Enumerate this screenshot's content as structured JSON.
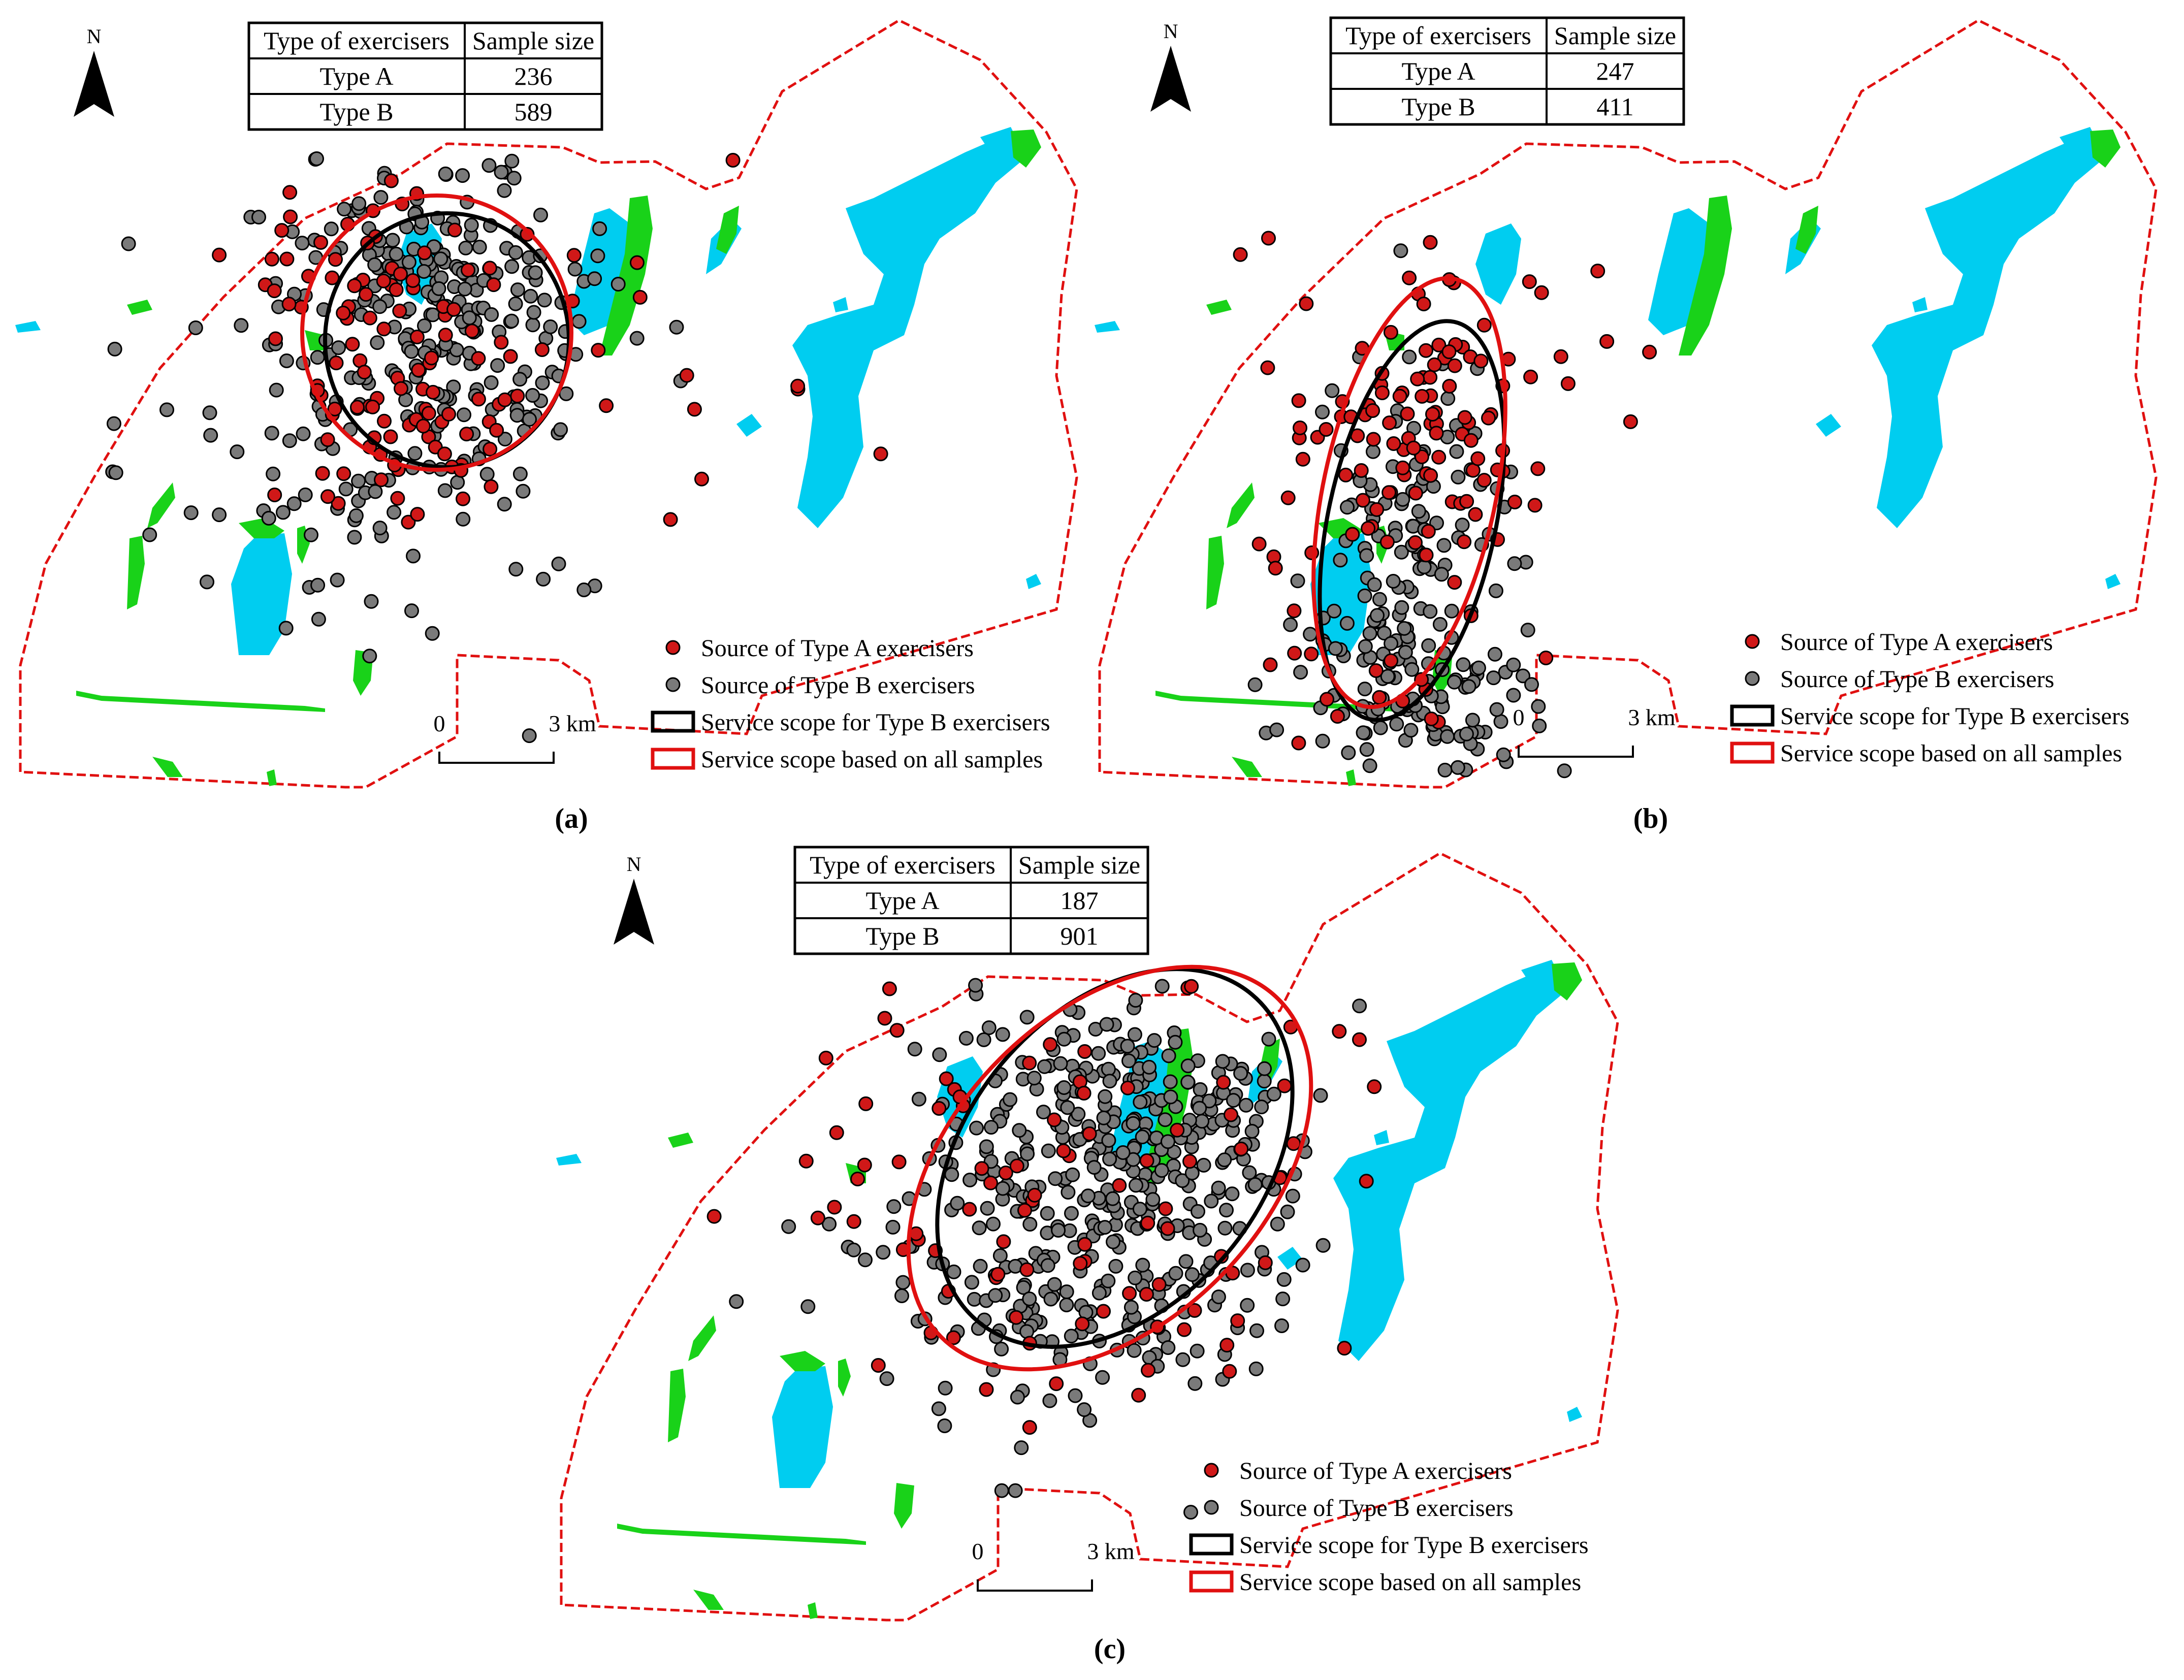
{
  "figure": {
    "colors": {
      "boundary": "#e01010",
      "water": "#00cdf0",
      "green": "#19d219",
      "type_a_point": "#d01818",
      "type_b_point": "#7a7a7a",
      "point_stroke": "#000000",
      "ellipse_type_b": "#000000",
      "ellipse_all": "#e01010"
    },
    "icons": {
      "north_arrow": "north-arrow-icon",
      "point_a": "red-circle-marker-icon",
      "point_b": "gray-circle-marker-icon",
      "ellipse_b": "black-rectangle-swatch-icon",
      "ellipse_all": "red-rectangle-swatch-icon"
    },
    "panels": [
      {
        "label": "(a)",
        "north": "N",
        "table": {
          "header": [
            "Type of exercisers",
            "Sample size"
          ],
          "rows": [
            [
              "Type A",
              "236"
            ],
            [
              "Type B",
              "589"
            ]
          ]
        },
        "legend": [
          "Source of Type A exercisers",
          "Source of Type B exercisers",
          "Service scope for Type B exercisers",
          "Service scope based on all samples"
        ],
        "scale": {
          "start": "0",
          "end": "3 km"
        },
        "sample_counts": {
          "type_a": 236,
          "type_b": 589
        }
      },
      {
        "label": "(b)",
        "north": "N",
        "table": {
          "header": [
            "Type of exercisers",
            "Sample size"
          ],
          "rows": [
            [
              "Type A",
              "247"
            ],
            [
              "Type B",
              "411"
            ]
          ]
        },
        "legend": [
          "Source of Type A exercisers",
          "Source of Type B exercisers",
          "Service scope for Type B exercisers",
          "Service scope based on all samples"
        ],
        "scale": {
          "start": "0",
          "end": "3 km"
        },
        "sample_counts": {
          "type_a": 247,
          "type_b": 411
        }
      },
      {
        "label": "(c)",
        "north": "N",
        "table": {
          "header": [
            "Type of exercisers",
            "Sample size"
          ],
          "rows": [
            [
              "Type A",
              "187"
            ],
            [
              "Type B",
              "901"
            ]
          ]
        },
        "legend": [
          "Source of Type A exercisers",
          "Source of Type B exercisers",
          "Service scope for Type B exercisers",
          "Service scope based on all samples"
        ],
        "scale": {
          "start": "0",
          "end": "3 km"
        },
        "sample_counts": {
          "type_a": 187,
          "type_b": 901
        }
      }
    ]
  }
}
